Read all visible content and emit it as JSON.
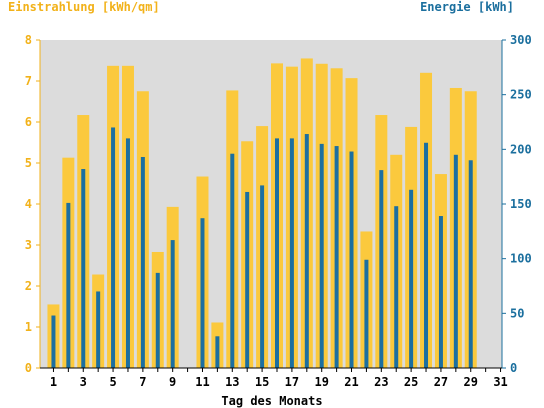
{
  "chart_data": {
    "type": "bar",
    "title_left": "Einstrahlung [kWh/qm]",
    "title_right": "Energie [kWh]",
    "xlabel": "Tag des Monats",
    "categories": [
      1,
      2,
      3,
      4,
      5,
      6,
      7,
      8,
      9,
      10,
      11,
      12,
      13,
      14,
      15,
      16,
      17,
      18,
      19,
      20,
      21,
      22,
      23,
      24,
      25,
      26,
      27,
      28,
      29,
      30,
      31
    ],
    "x_tick_labels": [
      "1",
      "3",
      "5",
      "7",
      "9",
      "11",
      "13",
      "15",
      "17",
      "19",
      "21",
      "23",
      "25",
      "27",
      "29",
      "31"
    ],
    "y_left_ticks": [
      "0",
      "1",
      "2",
      "3",
      "4",
      "5",
      "6",
      "7",
      "8"
    ],
    "y_right_ticks": [
      "0",
      "50",
      "100",
      "150",
      "200",
      "250",
      "300"
    ],
    "y_left_lim": [
      0,
      8
    ],
    "y_right_lim": [
      0,
      300
    ],
    "series": [
      {
        "name": "Einstrahlung",
        "axis": "left",
        "color": "#fbc93d",
        "values": [
          1.55,
          5.13,
          6.17,
          2.28,
          7.37,
          7.37,
          6.75,
          2.83,
          3.93,
          0,
          4.67,
          1.11,
          6.77,
          5.53,
          5.9,
          7.43,
          7.35,
          7.55,
          7.42,
          7.31,
          7.07,
          3.33,
          6.17,
          5.2,
          5.88,
          7.2,
          4.73,
          6.83,
          6.75,
          0,
          0
        ]
      },
      {
        "name": "Energie",
        "axis": "right",
        "color": "#1c6fa0",
        "values": [
          48,
          151,
          182,
          70,
          220,
          210,
          193,
          87,
          117,
          0,
          137,
          29,
          196,
          161,
          167,
          210,
          210,
          214,
          205,
          203,
          198,
          99,
          181,
          148,
          163,
          206,
          139,
          195,
          190,
          0,
          0
        ]
      }
    ],
    "grid": false,
    "plot_background": "#dcdcdc",
    "left_axis_color": "#f2b21a",
    "right_axis_color": "#1b6f9e"
  }
}
